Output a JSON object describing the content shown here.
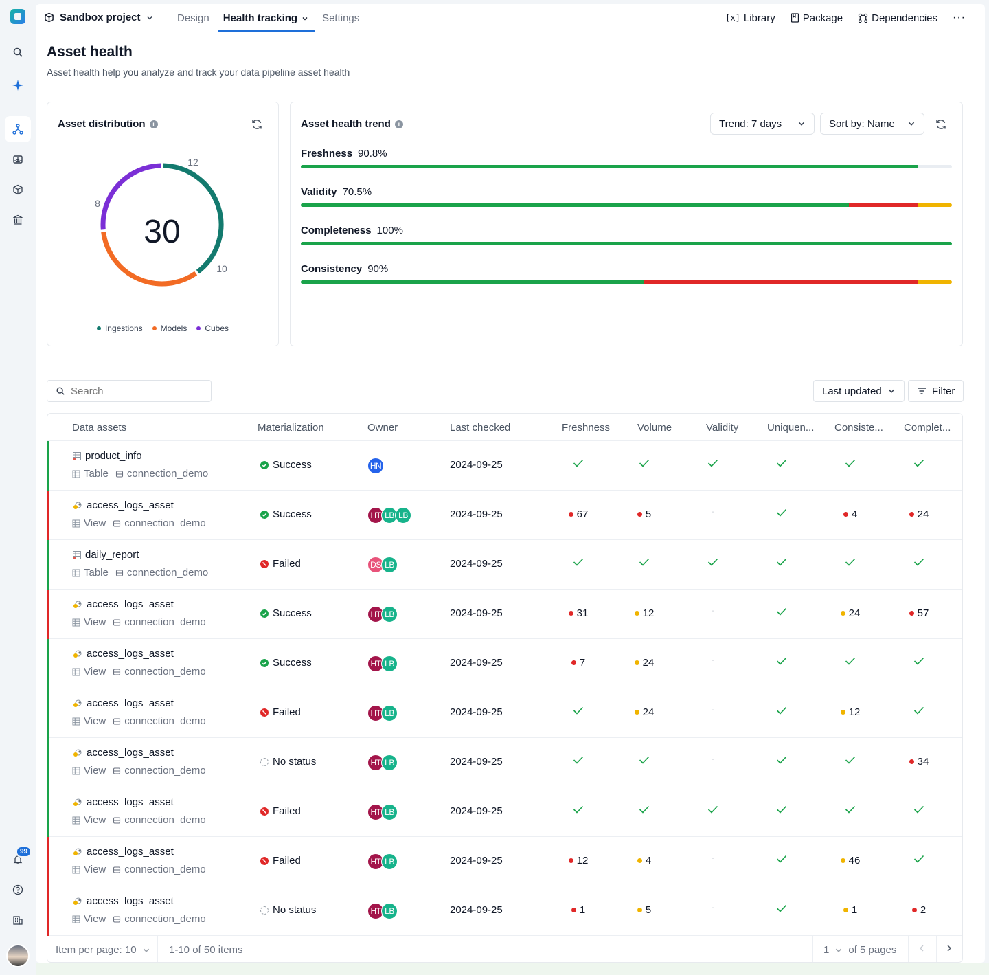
{
  "nav": {
    "project": "Sandbox project",
    "tabs": [
      {
        "label": "Design"
      },
      {
        "label": "Health tracking"
      },
      {
        "label": "Settings"
      }
    ],
    "right": {
      "library": "Library",
      "package": "Package",
      "dependencies": "Dependencies"
    },
    "notification_count": "99"
  },
  "page": {
    "title": "Asset health",
    "subtitle": "Asset health help you analyze and track your data pipeline asset health"
  },
  "distribution": {
    "title": "Asset distribution",
    "total": "30",
    "segments": [
      {
        "name": "Ingestions",
        "value": 12,
        "color": "#137a6e"
      },
      {
        "name": "Models",
        "value": 10,
        "color": "#f26b24"
      },
      {
        "name": "Cubes",
        "value": 8,
        "color": "#7b2fd6"
      }
    ],
    "labels": {
      "ingestions": "12",
      "models": "10",
      "cubes": "8"
    }
  },
  "trend": {
    "title": "Asset health trend",
    "trend_select": "Trend: 7 days",
    "sort_select": "Sort by: Name",
    "metrics": [
      {
        "name": "Freshness",
        "pct": "90.8%",
        "green": 94.7,
        "red": 0,
        "yellow": 0
      },
      {
        "name": "Validity",
        "pct": "70.5%",
        "green": 84.2,
        "red": 10.5,
        "yellow": 5.3
      },
      {
        "name": "Completeness",
        "pct": "100%",
        "green": 100,
        "red": 0,
        "yellow": 0
      },
      {
        "name": "Consistency",
        "pct": "90%",
        "green": 52.6,
        "red": 42.1,
        "yellow": 5.3
      }
    ]
  },
  "toolbar": {
    "search_placeholder": "Search",
    "sort_label": "Last updated",
    "filter_label": "Filter"
  },
  "table": {
    "headers": {
      "asset": "Data assets",
      "materialization": "Materialization",
      "owner": "Owner",
      "last_checked": "Last checked",
      "freshness": "Freshness",
      "volume": "Volume",
      "validity": "Validity",
      "uniqueness": "Uniquen...",
      "consistency": "Consiste...",
      "completeness": "Complet..."
    },
    "rows": [
      {
        "name": "product_info",
        "type": "Table",
        "conn": "connection_demo",
        "status": "Success",
        "owners": [
          "HN"
        ],
        "date": "2024-09-25",
        "flag": "green",
        "checks": [
          [
            "ok",
            ""
          ],
          [
            "ok",
            ""
          ],
          [
            "ok",
            ""
          ],
          [
            "ok",
            ""
          ],
          [
            "ok",
            ""
          ],
          [
            "ok",
            ""
          ]
        ]
      },
      {
        "name": "access_logs_asset",
        "type": "View",
        "conn": "connection_demo",
        "status": "Success",
        "owners": [
          "HT",
          "LB",
          "LB"
        ],
        "date": "2024-09-25",
        "flag": "red",
        "checks": [
          [
            "red",
            "67"
          ],
          [
            "red",
            "5"
          ],
          [
            "none",
            ""
          ],
          [
            "ok",
            ""
          ],
          [
            "red",
            "4"
          ],
          [
            "red",
            "24"
          ]
        ]
      },
      {
        "name": "daily_report",
        "type": "Table",
        "conn": "connection_demo",
        "status": "Failed",
        "owners": [
          "DS",
          "LB"
        ],
        "date": "2024-09-25",
        "flag": "green",
        "checks": [
          [
            "ok",
            ""
          ],
          [
            "ok",
            ""
          ],
          [
            "ok",
            ""
          ],
          [
            "ok",
            ""
          ],
          [
            "ok",
            ""
          ],
          [
            "ok",
            ""
          ]
        ]
      },
      {
        "name": "access_logs_asset",
        "type": "View",
        "conn": "connection_demo",
        "status": "Success",
        "owners": [
          "HT",
          "LB"
        ],
        "date": "2024-09-25",
        "flag": "red",
        "checks": [
          [
            "red",
            "31"
          ],
          [
            "yellow",
            "12"
          ],
          [
            "none",
            ""
          ],
          [
            "ok",
            ""
          ],
          [
            "yellow",
            "24"
          ],
          [
            "red",
            "57"
          ]
        ]
      },
      {
        "name": "access_logs_asset",
        "type": "View",
        "conn": "connection_demo",
        "status": "Success",
        "owners": [
          "HT",
          "LB"
        ],
        "date": "2024-09-25",
        "flag": "green",
        "checks": [
          [
            "red",
            "7"
          ],
          [
            "yellow",
            "24"
          ],
          [
            "none",
            ""
          ],
          [
            "ok",
            ""
          ],
          [
            "ok",
            ""
          ],
          [
            "ok",
            ""
          ]
        ]
      },
      {
        "name": "access_logs_asset",
        "type": "View",
        "conn": "connection_demo",
        "status": "Failed",
        "owners": [
          "HT",
          "LB"
        ],
        "date": "2024-09-25",
        "flag": "green",
        "checks": [
          [
            "ok",
            ""
          ],
          [
            "yellow",
            "24"
          ],
          [
            "none",
            ""
          ],
          [
            "ok",
            ""
          ],
          [
            "yellow",
            "12"
          ],
          [
            "ok",
            ""
          ]
        ]
      },
      {
        "name": "access_logs_asset",
        "type": "View",
        "conn": "connection_demo",
        "status": "No status",
        "owners": [
          "HT",
          "LB"
        ],
        "date": "2024-09-25",
        "flag": "green",
        "checks": [
          [
            "ok",
            ""
          ],
          [
            "ok",
            ""
          ],
          [
            "none",
            ""
          ],
          [
            "ok",
            ""
          ],
          [
            "ok",
            ""
          ],
          [
            "red",
            "34"
          ]
        ]
      },
      {
        "name": "access_logs_asset",
        "type": "View",
        "conn": "connection_demo",
        "status": "Failed",
        "owners": [
          "HT",
          "LB"
        ],
        "date": "2024-09-25",
        "flag": "green",
        "checks": [
          [
            "ok",
            ""
          ],
          [
            "ok",
            ""
          ],
          [
            "ok",
            ""
          ],
          [
            "ok",
            ""
          ],
          [
            "ok",
            ""
          ],
          [
            "ok",
            ""
          ]
        ]
      },
      {
        "name": "access_logs_asset",
        "type": "View",
        "conn": "connection_demo",
        "status": "Failed",
        "owners": [
          "HT",
          "LB"
        ],
        "date": "2024-09-25",
        "flag": "red",
        "checks": [
          [
            "red",
            "12"
          ],
          [
            "yellow",
            "4"
          ],
          [
            "none",
            ""
          ],
          [
            "ok",
            ""
          ],
          [
            "yellow",
            "46"
          ],
          [
            "ok",
            ""
          ]
        ]
      },
      {
        "name": "access_logs_asset",
        "type": "View",
        "conn": "connection_demo",
        "status": "No status",
        "owners": [
          "HT",
          "LB"
        ],
        "date": "2024-09-25",
        "flag": "red",
        "checks": [
          [
            "red",
            "1"
          ],
          [
            "yellow",
            "5"
          ],
          [
            "none",
            ""
          ],
          [
            "ok",
            ""
          ],
          [
            "yellow",
            "1"
          ],
          [
            "red",
            "2"
          ]
        ]
      }
    ]
  },
  "pagination": {
    "per_page": "Item per page: 10",
    "range": "1-10 of 50 items",
    "page": "1",
    "of_pages": "of 5 pages"
  },
  "colors": {
    "accent": "#1e6fd9",
    "green": "#1aa34a",
    "red": "#e02828",
    "yellow": "#f0b400"
  }
}
